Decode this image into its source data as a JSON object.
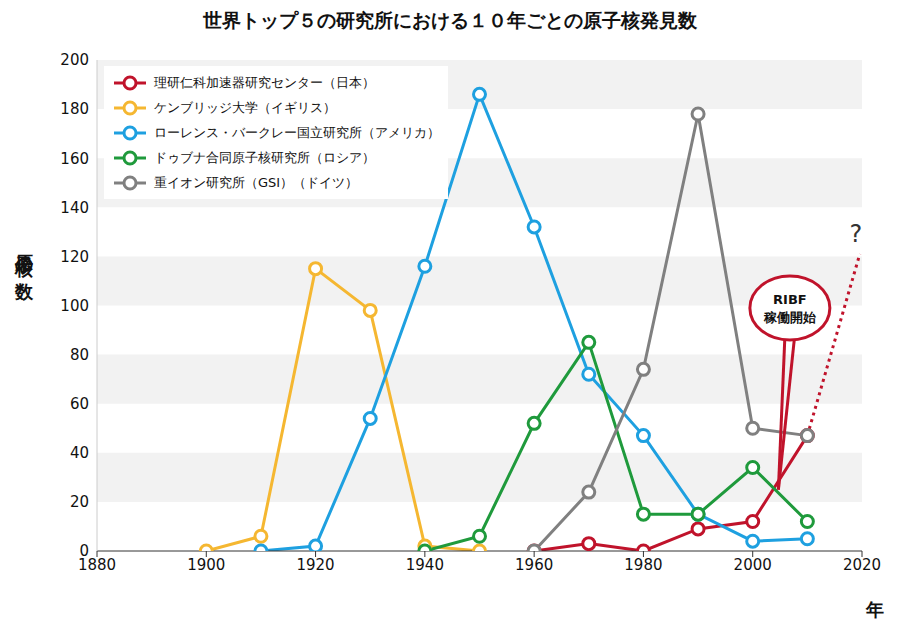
{
  "chart_data": {
    "type": "line",
    "title": "世界トップ５の研究所における１０年ごとの原子核発見数",
    "x_label": "年",
    "y_label": "原子核の数",
    "x": [
      1900,
      1910,
      1920,
      1930,
      1940,
      1950,
      1960,
      1970,
      1980,
      1990,
      2000,
      2010
    ],
    "series": [
      {
        "name": "理研仁科加速器研究センター（日本）",
        "color": "#c0132b",
        "marker": "circle",
        "values": [
          null,
          null,
          null,
          null,
          null,
          null,
          0,
          3,
          0,
          9,
          12,
          47
        ],
        "projection": {
          "x": 2019.6,
          "y": 121,
          "label": "?",
          "line_style": "dotted"
        }
      },
      {
        "name": "ケンブリッジ大学（イギリス）",
        "color": "#f5b731",
        "marker": "circle",
        "values": [
          0,
          6,
          115,
          98,
          2,
          0,
          null,
          null,
          null,
          null,
          null,
          null
        ]
      },
      {
        "name": "ローレンス・バークレー国立研究所（アメリカ）",
        "color": "#1ea0e0",
        "marker": "circle",
        "values": [
          null,
          0,
          2,
          54,
          116,
          186,
          132,
          72,
          47,
          15,
          4,
          5
        ]
      },
      {
        "name": "ドゥブナ合同原子核研究所（ロシア）",
        "color": "#1f9a3c",
        "marker": "circle",
        "values": [
          null,
          null,
          null,
          null,
          0,
          6,
          52,
          85,
          15,
          15,
          34,
          12
        ]
      },
      {
        "name": "重イオン研究所（GSI）（ドイツ）",
        "color": "#808080",
        "marker": "circle",
        "values": [
          null,
          null,
          null,
          null,
          null,
          null,
          0,
          24,
          74,
          178,
          50,
          47
        ]
      }
    ],
    "xlim": [
      1880,
      2020
    ],
    "xticks": [
      1880,
      1900,
      1920,
      1940,
      1960,
      1980,
      2000,
      2020
    ],
    "ylim": [
      0,
      200
    ],
    "yticks": [
      0,
      20,
      40,
      60,
      80,
      100,
      120,
      140,
      160,
      180,
      200
    ],
    "grid": true,
    "legend": "upper left",
    "annotations": [
      {
        "text": [
          "RIBF",
          "稼働開始"
        ],
        "x": 2006.8,
        "y": 99,
        "color": "#c0132b",
        "target": {
          "x": 2004.7,
          "y": 25
        }
      }
    ]
  }
}
